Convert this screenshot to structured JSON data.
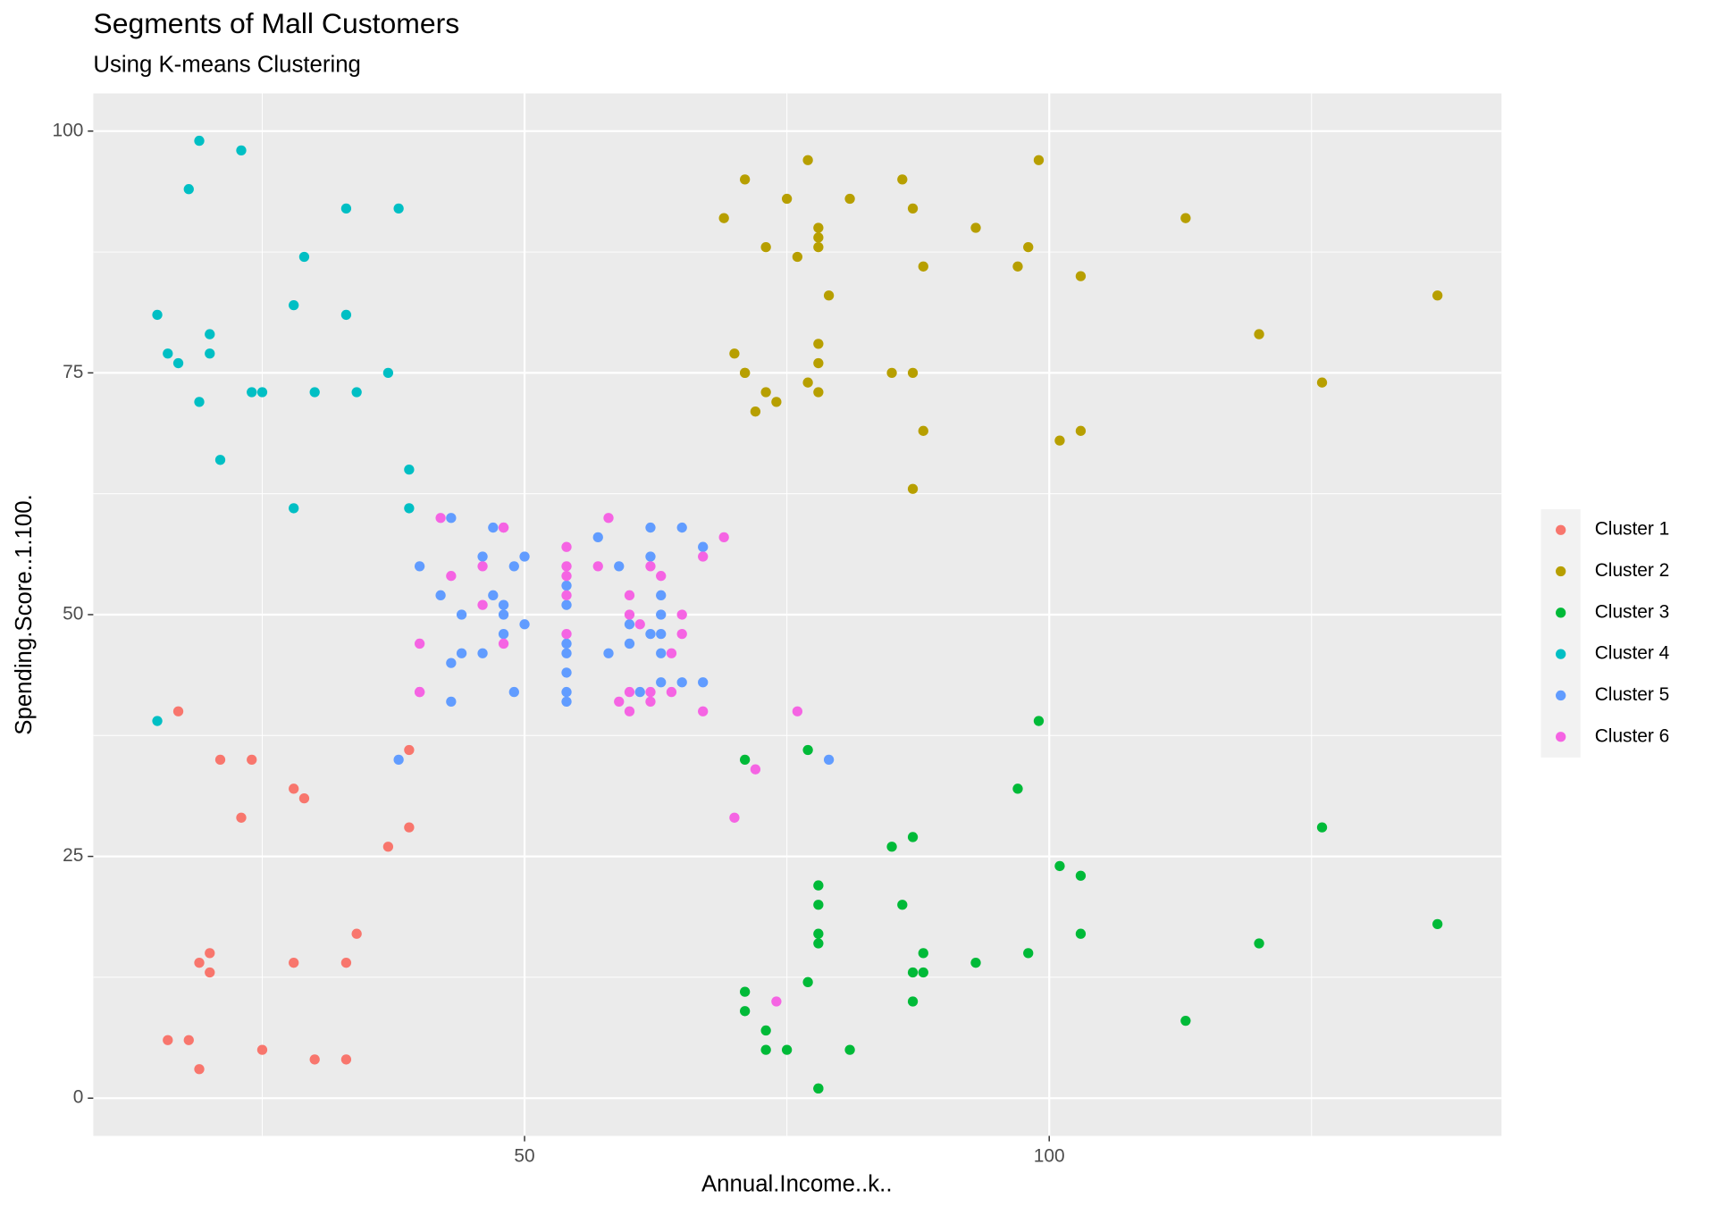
{
  "chart_data": {
    "type": "scatter",
    "title": "Segments of Mall Customers",
    "subtitle": "Using K-means Clustering",
    "x_label": "Annual.Income..k..",
    "y_label": "Spending.Score..1.100.",
    "xlim": [
      8.9,
      143.1
    ],
    "ylim": [
      -3.9,
      103.9
    ],
    "xticks": [
      50,
      100
    ],
    "yticks": [
      0,
      25,
      50,
      75,
      100
    ],
    "x_minor_ticks": [
      25,
      75,
      125
    ],
    "y_minor_ticks": [
      12.5,
      37.5,
      62.5,
      87.5
    ],
    "grid": true,
    "legend": "right",
    "series": [
      {
        "name": "Cluster 1",
        "color": "#F8766D",
        "x": [
          16,
          17,
          18,
          19,
          19,
          20,
          20,
          21,
          23,
          24,
          25,
          28,
          28,
          29,
          30,
          33,
          33,
          34,
          37,
          39,
          39
        ],
        "values": [
          6,
          40,
          6,
          3,
          14,
          15,
          13,
          35,
          29,
          35,
          5,
          14,
          32,
          31,
          4,
          4,
          14,
          17,
          26,
          36,
          28
        ]
      },
      {
        "name": "Cluster 2",
        "color": "#B79F00",
        "x": [
          69,
          70,
          71,
          71,
          71,
          72,
          73,
          73,
          74,
          75,
          76,
          77,
          77,
          78,
          78,
          78,
          78,
          78,
          78,
          79,
          81,
          85,
          86,
          87,
          87,
          87,
          88,
          88,
          93,
          97,
          98,
          99,
          101,
          103,
          103,
          113,
          120,
          126,
          137
        ],
        "values": [
          91,
          77,
          95,
          75,
          75,
          71,
          88,
          73,
          72,
          93,
          87,
          97,
          74,
          90,
          88,
          76,
          89,
          78,
          73,
          83,
          93,
          75,
          95,
          63,
          75,
          92,
          86,
          69,
          90,
          86,
          88,
          97,
          68,
          85,
          69,
          91,
          79,
          74,
          83
        ]
      },
      {
        "name": "Cluster 3",
        "color": "#00BA38",
        "x": [
          71,
          71,
          71,
          73,
          73,
          75,
          77,
          77,
          78,
          78,
          78,
          78,
          78,
          78,
          81,
          85,
          86,
          87,
          87,
          87,
          88,
          88,
          93,
          97,
          98,
          99,
          101,
          103,
          103,
          113,
          120,
          126,
          137
        ],
        "values": [
          35,
          11,
          9,
          5,
          7,
          5,
          12,
          36,
          22,
          17,
          20,
          16,
          1,
          1,
          5,
          26,
          20,
          27,
          13,
          10,
          13,
          15,
          14,
          32,
          15,
          39,
          24,
          17,
          23,
          8,
          16,
          28,
          18
        ]
      },
      {
        "name": "Cluster 4",
        "color": "#00BFC4",
        "x": [
          15,
          15,
          16,
          17,
          18,
          19,
          19,
          20,
          20,
          21,
          23,
          24,
          25,
          28,
          28,
          29,
          30,
          33,
          33,
          34,
          37,
          38,
          39,
          39
        ],
        "values": [
          39,
          81,
          77,
          76,
          94,
          72,
          99,
          77,
          79,
          66,
          98,
          73,
          73,
          82,
          61,
          87,
          73,
          92,
          81,
          73,
          75,
          92,
          61,
          65
        ]
      },
      {
        "name": "Cluster 5",
        "color": "#619CFF",
        "x": [
          38,
          40,
          42,
          43,
          43,
          43,
          44,
          44,
          46,
          46,
          47,
          47,
          48,
          48,
          48,
          49,
          49,
          50,
          50,
          54,
          54,
          54,
          54,
          54,
          54,
          54,
          57,
          58,
          59,
          60,
          60,
          61,
          62,
          62,
          62,
          63,
          63,
          63,
          63,
          63,
          65,
          65,
          67,
          67,
          79
        ],
        "values": [
          35,
          55,
          52,
          60,
          45,
          41,
          50,
          46,
          46,
          56,
          52,
          59,
          51,
          50,
          48,
          55,
          42,
          49,
          56,
          53,
          51,
          47,
          46,
          44,
          42,
          41,
          58,
          46,
          55,
          49,
          47,
          42,
          48,
          59,
          56,
          50,
          46,
          43,
          48,
          52,
          43,
          59,
          43,
          57,
          35
        ]
      },
      {
        "name": "Cluster 6",
        "color": "#F564E3",
        "x": [
          40,
          40,
          40,
          42,
          43,
          46,
          46,
          48,
          48,
          48,
          54,
          54,
          54,
          54,
          54,
          57,
          58,
          59,
          60,
          60,
          60,
          60,
          61,
          62,
          62,
          62,
          63,
          64,
          64,
          65,
          65,
          67,
          67,
          69,
          70,
          72,
          74,
          76
        ],
        "values": [
          47,
          42,
          42,
          60,
          54,
          51,
          55,
          59,
          59,
          47,
          57,
          55,
          54,
          52,
          48,
          55,
          60,
          41,
          40,
          42,
          52,
          50,
          49,
          41,
          55,
          42,
          54,
          42,
          46,
          48,
          50,
          56,
          40,
          58,
          29,
          34,
          10,
          40
        ]
      }
    ]
  }
}
